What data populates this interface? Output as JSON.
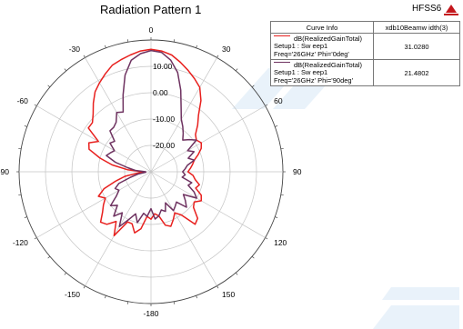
{
  "title": "Radiation Pattern 1",
  "brand": "HFSS6",
  "colors": {
    "red": "#e8201e",
    "purple": "#6e3260",
    "grid": "#c4c4c4"
  },
  "legend": {
    "header": [
      "Curve Info",
      "xdb10Beamw idth(3)"
    ],
    "rows": [
      {
        "name": "dB(RealizedGainTotal)",
        "setup": "Setup1 : Sw eep1",
        "freq": "Freq='26GHz' Phi='0deg'",
        "value": "31.0280",
        "color": "#e8201e"
      },
      {
        "name": "dB(RealizedGainTotal)",
        "setup": "Setup1 : Sw eep1",
        "freq": "Freq='26GHz' Phi='90deg'",
        "value": "21.4802",
        "color": "#6e3260"
      }
    ]
  },
  "chart_data": {
    "type": "polar",
    "title": "Radiation Pattern 1",
    "radial_range": [
      -30,
      20
    ],
    "radial_ticks": [
      10,
      0,
      -10,
      -20
    ],
    "radial_tick_labels": [
      "10.00",
      "0.00",
      "-10.00",
      "-20.00"
    ],
    "angle_ticks": [
      0,
      30,
      60,
      90,
      120,
      150,
      180,
      -150,
      -120,
      -90,
      -60,
      -30
    ],
    "angle_tick_labels": [
      "0",
      "30",
      "60",
      "90",
      "120",
      "150",
      "-180",
      "-150",
      "-120",
      "-90",
      "-60",
      "-30"
    ],
    "series": [
      {
        "name": "dB(RealizedGainTotal) Setup1 : Sw eep1 Freq='26GHz' Phi='0deg'",
        "color": "#e8201e",
        "theta": [
          0,
          5,
          10,
          15,
          20,
          25,
          30,
          35,
          40,
          45,
          50,
          55,
          60,
          65,
          70,
          75,
          80,
          85,
          90,
          95,
          100,
          105,
          110,
          115,
          120,
          125,
          130,
          135,
          140,
          145,
          150,
          155,
          160,
          165,
          170,
          175,
          180,
          185,
          190,
          195,
          200,
          205,
          210,
          215,
          220,
          225,
          230,
          235,
          240,
          245,
          250,
          255,
          260,
          265,
          270,
          275,
          280,
          285,
          290,
          295,
          300,
          305,
          310,
          315,
          320,
          325,
          330,
          335,
          340,
          345,
          350,
          355
        ],
        "values": [
          16.5,
          16,
          15,
          13,
          11,
          9,
          7,
          3,
          -2,
          -5,
          -8,
          -9,
          -8,
          -9,
          -11,
          -13,
          -14,
          -15,
          -16,
          -14,
          -13,
          -11,
          -12,
          -9,
          -8,
          -10,
          -9,
          -5,
          -4,
          -10,
          -12,
          -10,
          -8,
          -9,
          -13,
          -14,
          -12,
          -13,
          -8,
          -6,
          -9,
          -9,
          -2,
          -7,
          -4,
          -3,
          -6,
          -8,
          -10,
          -8,
          -11,
          -16,
          -20,
          -25,
          -27,
          -21,
          -15,
          -10,
          -5,
          -4,
          -7,
          -1,
          -1,
          1,
          4,
          7,
          9,
          11,
          13,
          14,
          15,
          16
        ]
      },
      {
        "name": "dB(RealizedGainTotal) Setup1 : Sw eep1 Freq='26GHz' Phi='90deg'",
        "color": "#6e3260",
        "theta": [
          0,
          5,
          10,
          15,
          20,
          25,
          30,
          35,
          40,
          45,
          50,
          55,
          60,
          65,
          70,
          75,
          80,
          85,
          90,
          95,
          100,
          105,
          110,
          115,
          120,
          125,
          130,
          135,
          140,
          145,
          150,
          155,
          160,
          165,
          170,
          175,
          180,
          185,
          190,
          195,
          200,
          205,
          210,
          215,
          220,
          225,
          230,
          235,
          240,
          245,
          250,
          255,
          260,
          265,
          270,
          275,
          280,
          285,
          290,
          295,
          300,
          305,
          310,
          315,
          320,
          325,
          330,
          335,
          340,
          345,
          350,
          355
        ],
        "values": [
          16,
          15.5,
          13,
          9,
          3,
          -3,
          -7,
          -9,
          -11,
          -13,
          -11,
          -9,
          -14,
          -12,
          -15,
          -13,
          -16,
          -17,
          -18,
          -17,
          -18,
          -14,
          -15,
          -12,
          -10,
          -15,
          -13,
          -11,
          -15,
          -14,
          -13,
          -17,
          -14,
          -15,
          -13,
          -12,
          -16,
          -13,
          -14,
          -10,
          -13,
          -10,
          -6,
          -11,
          -8,
          -12,
          -10,
          -14,
          -16,
          -15,
          -17,
          -22,
          -25,
          -28,
          -28,
          -24,
          -21,
          -16,
          -12,
          -13,
          -14,
          -11,
          -12,
          -8,
          -8,
          -7,
          -4,
          -5,
          1,
          8,
          13,
          15
        ]
      }
    ]
  }
}
